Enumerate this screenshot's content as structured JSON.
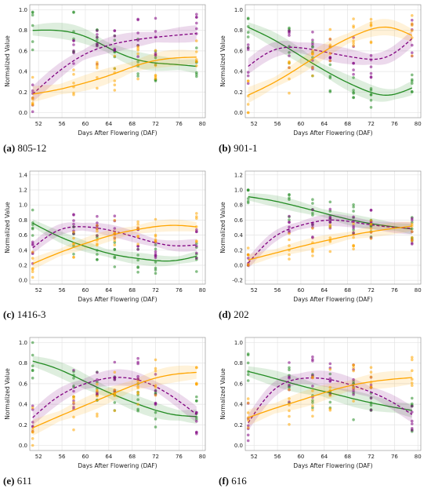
{
  "figure": {
    "colors": {
      "green": "#228B22",
      "purple": "#800080",
      "orange": "#FFA500"
    }
  },
  "chart_data": [
    {
      "type": "scatter",
      "panel_label": "(a)",
      "caption": "805-12",
      "xlabel": "Days After Flowering (DAF)",
      "ylabel": "Normalized Value",
      "xlim": [
        50.5,
        80.5
      ],
      "ylim": [
        -0.05,
        1.05
      ],
      "xticks": [
        52,
        56,
        60,
        64,
        68,
        72,
        76,
        80
      ],
      "yticks": [
        0.0,
        0.2,
        0.4,
        0.6,
        0.8,
        1.0
      ],
      "grid": true,
      "series": [
        {
          "color": "green",
          "line": "solid",
          "points": [
            [
              51,
              0.8
            ],
            [
              55,
              0.8
            ],
            [
              60,
              0.74
            ],
            [
              65,
              0.6
            ],
            [
              70,
              0.5
            ],
            [
              75,
              0.47
            ],
            [
              79,
              0.45
            ]
          ]
        },
        {
          "color": "purple",
          "line": "dashed",
          "points": [
            [
              51,
              0.18
            ],
            [
              55,
              0.38
            ],
            [
              60,
              0.57
            ],
            [
              65,
              0.67
            ],
            [
              70,
              0.72
            ],
            [
              75,
              0.75
            ],
            [
              79,
              0.77
            ]
          ]
        },
        {
          "color": "orange",
          "line": "solid",
          "points": [
            [
              51,
              0.18
            ],
            [
              55,
              0.22
            ],
            [
              60,
              0.29
            ],
            [
              65,
              0.38
            ],
            [
              70,
              0.48
            ],
            [
              75,
              0.53
            ],
            [
              79,
              0.54
            ]
          ]
        }
      ]
    },
    {
      "type": "scatter",
      "panel_label": "(b)",
      "caption": "901-1",
      "xlabel": "Days After Flowering (DAF)",
      "ylabel": "Normalized Value",
      "xlim": [
        50.5,
        80.5
      ],
      "ylim": [
        -0.05,
        1.05
      ],
      "xticks": [
        52,
        56,
        60,
        64,
        68,
        72,
        76,
        80
      ],
      "yticks": [
        0.0,
        0.2,
        0.4,
        0.6,
        0.8,
        1.0
      ],
      "grid": true,
      "series": [
        {
          "color": "green",
          "line": "solid",
          "points": [
            [
              51,
              0.83
            ],
            [
              55,
              0.72
            ],
            [
              60,
              0.55
            ],
            [
              65,
              0.38
            ],
            [
              70,
              0.24
            ],
            [
              75,
              0.17
            ],
            [
              79,
              0.24
            ]
          ]
        },
        {
          "color": "purple",
          "line": "dashed",
          "points": [
            [
              51,
              0.45
            ],
            [
              55,
              0.6
            ],
            [
              60,
              0.63
            ],
            [
              65,
              0.58
            ],
            [
              70,
              0.53
            ],
            [
              75,
              0.55
            ],
            [
              79,
              0.72
            ]
          ]
        },
        {
          "color": "orange",
          "line": "solid",
          "points": [
            [
              51,
              0.17
            ],
            [
              55,
              0.28
            ],
            [
              60,
              0.45
            ],
            [
              65,
              0.63
            ],
            [
              70,
              0.77
            ],
            [
              75,
              0.83
            ],
            [
              79,
              0.75
            ]
          ]
        }
      ]
    },
    {
      "type": "scatter",
      "panel_label": "(c)",
      "caption": "1416-3",
      "xlabel": "Days After Flowering (DAF)",
      "ylabel": "Normalized Value",
      "xlim": [
        50.5,
        80.5
      ],
      "ylim": [
        -0.05,
        1.45
      ],
      "xticks": [
        52,
        56,
        60,
        64,
        68,
        72,
        76,
        80
      ],
      "yticks": [
        0.0,
        0.2,
        0.4,
        0.6,
        0.8,
        1.0,
        1.2,
        1.4
      ],
      "grid": true,
      "series": [
        {
          "color": "green",
          "line": "solid",
          "points": [
            [
              51,
              0.76
            ],
            [
              55,
              0.6
            ],
            [
              60,
              0.45
            ],
            [
              65,
              0.34
            ],
            [
              70,
              0.28
            ],
            [
              75,
              0.26
            ],
            [
              79,
              0.32
            ]
          ]
        },
        {
          "color": "purple",
          "line": "dashed",
          "points": [
            [
              51,
              0.43
            ],
            [
              55,
              0.65
            ],
            [
              60,
              0.71
            ],
            [
              65,
              0.65
            ],
            [
              70,
              0.54
            ],
            [
              75,
              0.46
            ],
            [
              79,
              0.47
            ]
          ]
        },
        {
          "color": "orange",
          "line": "solid",
          "points": [
            [
              51,
              0.22
            ],
            [
              55,
              0.35
            ],
            [
              60,
              0.49
            ],
            [
              65,
              0.61
            ],
            [
              70,
              0.69
            ],
            [
              75,
              0.73
            ],
            [
              79,
              0.71
            ]
          ]
        }
      ]
    },
    {
      "type": "scatter",
      "panel_label": "(d)",
      "caption": "202",
      "xlabel": "Days After Flowering (DAF)",
      "ylabel": "Normalized Value",
      "xlim": [
        50.5,
        80.5
      ],
      "ylim": [
        -0.25,
        1.25
      ],
      "xticks": [
        52,
        56,
        60,
        64,
        68,
        72,
        76,
        80
      ],
      "yticks": [
        -0.2,
        0.0,
        0.2,
        0.4,
        0.6,
        0.8,
        1.0,
        1.2
      ],
      "grid": true,
      "series": [
        {
          "color": "green",
          "line": "solid",
          "points": [
            [
              51,
              0.91
            ],
            [
              55,
              0.86
            ],
            [
              60,
              0.77
            ],
            [
              65,
              0.67
            ],
            [
              70,
              0.58
            ],
            [
              75,
              0.52
            ],
            [
              79,
              0.48
            ]
          ]
        },
        {
          "color": "purple",
          "line": "dashed",
          "points": [
            [
              51,
              0.03
            ],
            [
              55,
              0.35
            ],
            [
              60,
              0.53
            ],
            [
              65,
              0.6
            ],
            [
              70,
              0.56
            ],
            [
              75,
              0.51
            ],
            [
              79,
              0.49
            ]
          ]
        },
        {
          "color": "orange",
          "line": "solid",
          "points": [
            [
              51,
              0.07
            ],
            [
              55,
              0.15
            ],
            [
              60,
              0.25
            ],
            [
              65,
              0.34
            ],
            [
              70,
              0.42
            ],
            [
              75,
              0.48
            ],
            [
              79,
              0.52
            ]
          ]
        }
      ]
    },
    {
      "type": "scatter",
      "panel_label": "(e)",
      "caption": "611",
      "xlabel": "Days After Flowering (DAF)",
      "ylabel": "Normalized Value",
      "xlim": [
        50.5,
        80.5
      ],
      "ylim": [
        -0.05,
        1.05
      ],
      "xticks": [
        52,
        56,
        60,
        64,
        68,
        72,
        76,
        80
      ],
      "yticks": [
        0.0,
        0.2,
        0.4,
        0.6,
        0.8,
        1.0
      ],
      "grid": true,
      "series": [
        {
          "color": "green",
          "line": "solid",
          "points": [
            [
              51,
              0.82
            ],
            [
              55,
              0.75
            ],
            [
              60,
              0.62
            ],
            [
              65,
              0.49
            ],
            [
              70,
              0.38
            ],
            [
              75,
              0.3
            ],
            [
              79,
              0.28
            ]
          ]
        },
        {
          "color": "purple",
          "line": "dashed",
          "points": [
            [
              51,
              0.27
            ],
            [
              55,
              0.46
            ],
            [
              60,
              0.6
            ],
            [
              65,
              0.66
            ],
            [
              70,
              0.62
            ],
            [
              75,
              0.47
            ],
            [
              79,
              0.3
            ]
          ]
        },
        {
          "color": "orange",
          "line": "solid",
          "points": [
            [
              51,
              0.17
            ],
            [
              55,
              0.27
            ],
            [
              60,
              0.39
            ],
            [
              65,
              0.51
            ],
            [
              70,
              0.62
            ],
            [
              75,
              0.69
            ],
            [
              79,
              0.71
            ]
          ]
        }
      ]
    },
    {
      "type": "scatter",
      "panel_label": "(f)",
      "caption": "616",
      "xlabel": "Days After Flowering (DAF)",
      "ylabel": "Normalized Value",
      "xlim": [
        50.5,
        80.5
      ],
      "ylim": [
        -0.05,
        1.05
      ],
      "xticks": [
        52,
        56,
        60,
        64,
        68,
        72,
        76,
        80
      ],
      "yticks": [
        0.0,
        0.2,
        0.4,
        0.6,
        0.8,
        1.0
      ],
      "grid": true,
      "series": [
        {
          "color": "green",
          "line": "solid",
          "points": [
            [
              51,
              0.72
            ],
            [
              55,
              0.66
            ],
            [
              60,
              0.58
            ],
            [
              65,
              0.51
            ],
            [
              70,
              0.44
            ],
            [
              75,
              0.38
            ],
            [
              79,
              0.34
            ]
          ]
        },
        {
          "color": "purple",
          "line": "dashed",
          "points": [
            [
              51,
              0.22
            ],
            [
              55,
              0.52
            ],
            [
              60,
              0.65
            ],
            [
              65,
              0.64
            ],
            [
              70,
              0.56
            ],
            [
              75,
              0.44
            ],
            [
              79,
              0.3
            ]
          ]
        },
        {
          "color": "orange",
          "line": "solid",
          "points": [
            [
              51,
              0.27
            ],
            [
              55,
              0.35
            ],
            [
              60,
              0.44
            ],
            [
              65,
              0.53
            ],
            [
              70,
              0.6
            ],
            [
              75,
              0.64
            ],
            [
              79,
              0.66
            ]
          ]
        }
      ]
    }
  ]
}
